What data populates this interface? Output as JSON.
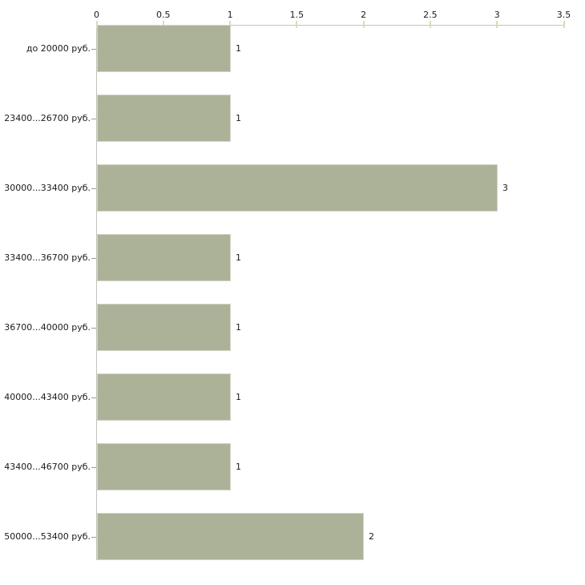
{
  "chart_data": {
    "type": "bar",
    "orientation": "horizontal",
    "title": "",
    "xlabel": "",
    "ylabel": "",
    "categories": [
      "до 20000 руб.",
      "23400...26700 руб.",
      "30000...33400 руб.",
      "33400...36700 руб.",
      "36700...40000 руб.",
      "40000...43400 руб.",
      "43400...46700 руб.",
      "50000...53400 руб."
    ],
    "values": [
      1,
      1,
      3,
      1,
      1,
      1,
      1,
      2
    ],
    "value_labels": [
      "1",
      "1",
      "3",
      "1",
      "1",
      "1",
      "1",
      "2"
    ],
    "xlim": [
      0,
      3.5
    ],
    "xticks": [
      0,
      0.5,
      1,
      1.5,
      2,
      2.5,
      3,
      3.5
    ],
    "xtick_labels": [
      "0",
      "0.5",
      "1",
      "1.5",
      "2",
      "2.5",
      "3",
      "3.5"
    ],
    "axis_position": "top",
    "grid": false,
    "legend": false,
    "colors": {
      "bar_fill": "#acb298",
      "bar_border": "#d3d6c5",
      "axis_line": "#c3c3bc",
      "x_tick": "#d9dbbb",
      "y_tick": "#9c9c92",
      "text": "#1a1a1a",
      "background": "#ffffff"
    }
  }
}
